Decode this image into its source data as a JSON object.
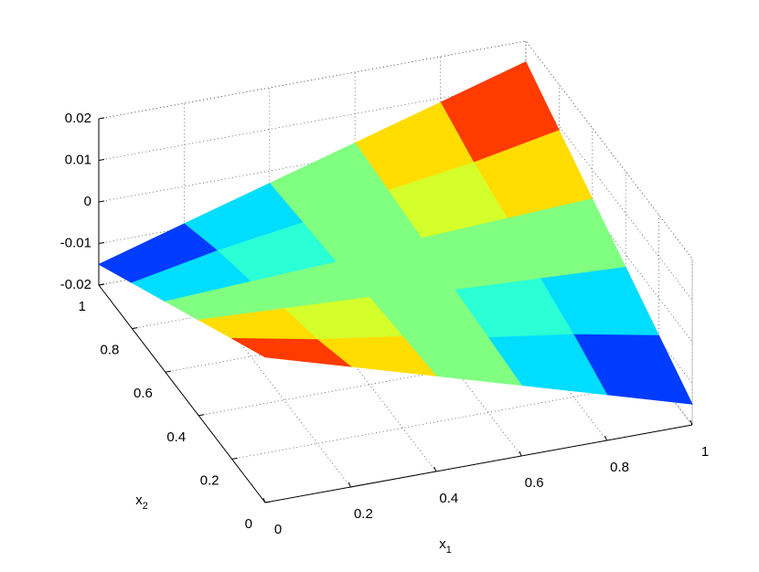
{
  "chart_data": {
    "type": "surface",
    "x": [
      0,
      0.2,
      0.4,
      0.6,
      0.8,
      1
    ],
    "y": [
      0,
      0.2,
      0.4,
      0.6,
      0.8,
      1
    ],
    "z": [
      [
        0.015,
        0.009,
        0.003,
        -0.003,
        -0.009,
        -0.015
      ],
      [
        0.009,
        0.005,
        0.002,
        -0.002,
        -0.005,
        -0.009
      ],
      [
        0.003,
        0.002,
        0.001,
        -0.001,
        -0.002,
        -0.003
      ],
      [
        -0.003,
        -0.002,
        -0.001,
        0.001,
        0.002,
        0.003
      ],
      [
        -0.009,
        -0.005,
        -0.002,
        0.002,
        0.005,
        0.009
      ],
      [
        -0.015,
        -0.009,
        -0.003,
        0.003,
        0.009,
        0.015
      ]
    ],
    "xlim": [
      0,
      1
    ],
    "ylim": [
      0,
      1
    ],
    "zlim": [
      -0.02,
      0.02
    ],
    "xticks": [
      0,
      0.2,
      0.4,
      0.6,
      0.8,
      1
    ],
    "yticks": [
      0,
      0.2,
      0.4,
      0.6,
      0.8,
      1
    ],
    "zticks": [
      -0.02,
      -0.01,
      0,
      0.01,
      0.02
    ],
    "xlabel": {
      "text": "x",
      "subscript": "1"
    },
    "ylabel": {
      "text": "x",
      "subscript": "2"
    },
    "colormap": "jet",
    "grid": true
  }
}
